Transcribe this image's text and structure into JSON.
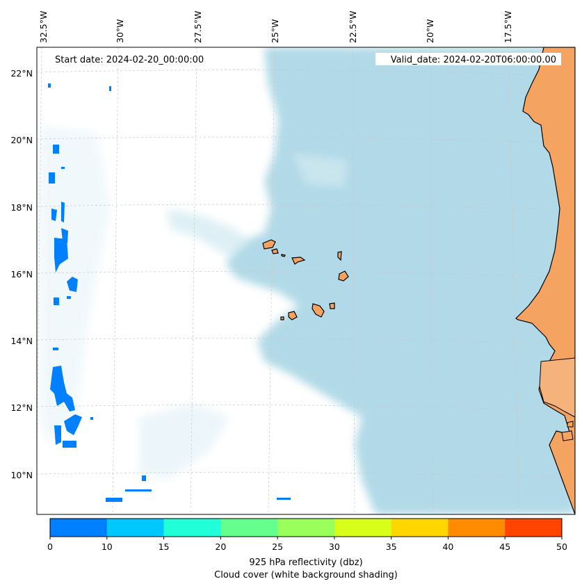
{
  "map": {
    "start_label": "Start date: 2024-02-20_00:00:00",
    "valid_label": "Valid_date: 2024-02-20T06:00:00.00",
    "lon_ticks": [
      "32.5°W",
      "30°W",
      "27.5°W",
      "25°W",
      "22.5°W",
      "20°W",
      "17.5°W"
    ],
    "lat_ticks": [
      "22°N",
      "20°N",
      "18°N",
      "16°N",
      "14°N",
      "12°N",
      "10°N"
    ],
    "colors": {
      "land": "#f4a460",
      "cloud": "#add8e6",
      "reflectivity_low": "#0080ff"
    }
  },
  "colorbar": {
    "bins": [
      {
        "from": 0,
        "to": 10,
        "color": "#0080ff"
      },
      {
        "from": 10,
        "to": 15,
        "color": "#00c8ff"
      },
      {
        "from": 15,
        "to": 20,
        "color": "#20ffd8"
      },
      {
        "from": 20,
        "to": 25,
        "color": "#64ff8c"
      },
      {
        "from": 25,
        "to": 30,
        "color": "#9aff5a"
      },
      {
        "from": 30,
        "to": 35,
        "color": "#d8ff1a"
      },
      {
        "from": 35,
        "to": 40,
        "color": "#ffd700"
      },
      {
        "from": 40,
        "to": 45,
        "color": "#ff8c00"
      },
      {
        "from": 45,
        "to": 50,
        "color": "#ff4500"
      }
    ],
    "ticks": [
      "0",
      "10",
      "15",
      "20",
      "25",
      "30",
      "35",
      "40",
      "45",
      "50"
    ],
    "label_line1": "925 hPa reflectivity (dbz)",
    "label_line2": "Cloud cover (white background shading)"
  }
}
